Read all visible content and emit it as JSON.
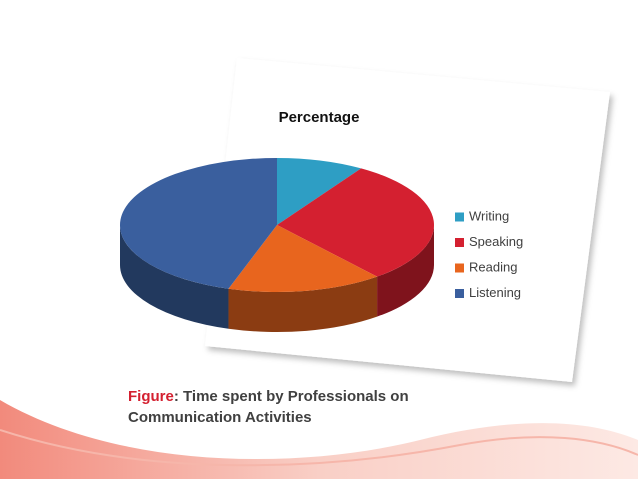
{
  "chart_data": {
    "type": "pie",
    "title": "Percentage",
    "categories": [
      "Writing",
      "Speaking",
      "Reading",
      "Listening"
    ],
    "values": [
      9,
      30,
      16,
      45
    ],
    "colors": [
      "#2e9ec4",
      "#d42030",
      "#e8651e",
      "#3a5f9e"
    ]
  },
  "caption": {
    "label": "Figure",
    "text": ": Time spent by Professionals on Communication Activities"
  }
}
